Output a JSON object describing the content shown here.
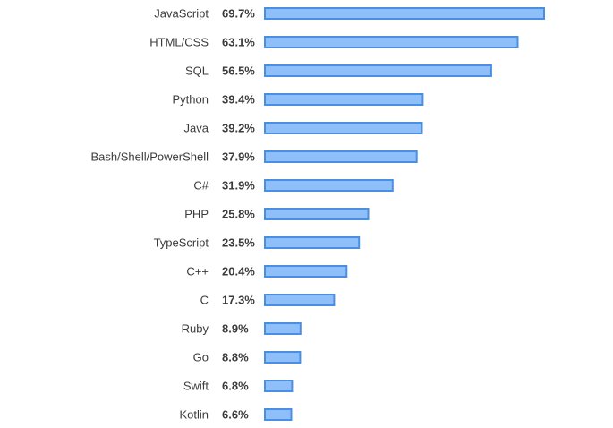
{
  "chart_data": {
    "type": "bar",
    "orientation": "horizontal",
    "categories": [
      "JavaScript",
      "HTML/CSS",
      "SQL",
      "Python",
      "Java",
      "Bash/Shell/PowerShell",
      "C#",
      "PHP",
      "TypeScript",
      "C++",
      "C",
      "Ruby",
      "Go",
      "Swift",
      "Kotlin"
    ],
    "values": [
      69.7,
      63.1,
      56.5,
      39.4,
      39.2,
      37.9,
      31.9,
      25.8,
      23.5,
      20.4,
      17.3,
      8.9,
      8.8,
      6.8,
      6.6
    ],
    "value_labels": [
      "69.7%",
      "63.1%",
      "56.5%",
      "39.4%",
      "39.2%",
      "37.9%",
      "31.9%",
      "25.8%",
      "23.5%",
      "20.4%",
      "17.3%",
      "8.9%",
      "8.8%",
      "6.8%",
      "6.6%"
    ],
    "unit": "%",
    "xlim": [
      0,
      69.7
    ],
    "grid": false,
    "legend": "none",
    "colors": {
      "bar_fill": "#8fbffb",
      "bar_stroke": "#4a90e2",
      "text": "#3b3b3b"
    }
  }
}
